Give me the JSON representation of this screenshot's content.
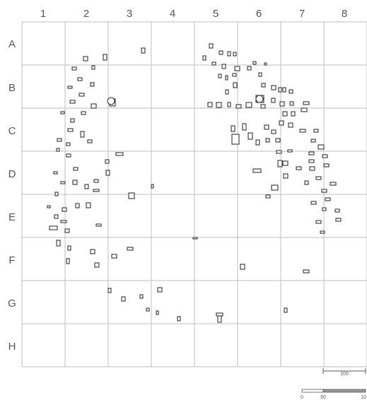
{
  "grid": {
    "columns": [
      "1",
      "2",
      "3",
      "4",
      "5",
      "6",
      "7",
      "8"
    ],
    "rows": [
      "A",
      "B",
      "C",
      "D",
      "E",
      "F",
      "G",
      "H"
    ]
  },
  "scale_bar_1": {
    "label": "100"
  },
  "scale_bar_2": {
    "ticks": [
      "0",
      "50",
      "10"
    ]
  },
  "colors": {
    "grid": "#bdbdbd",
    "feature_stroke": "#333333",
    "text": "#555555"
  }
}
